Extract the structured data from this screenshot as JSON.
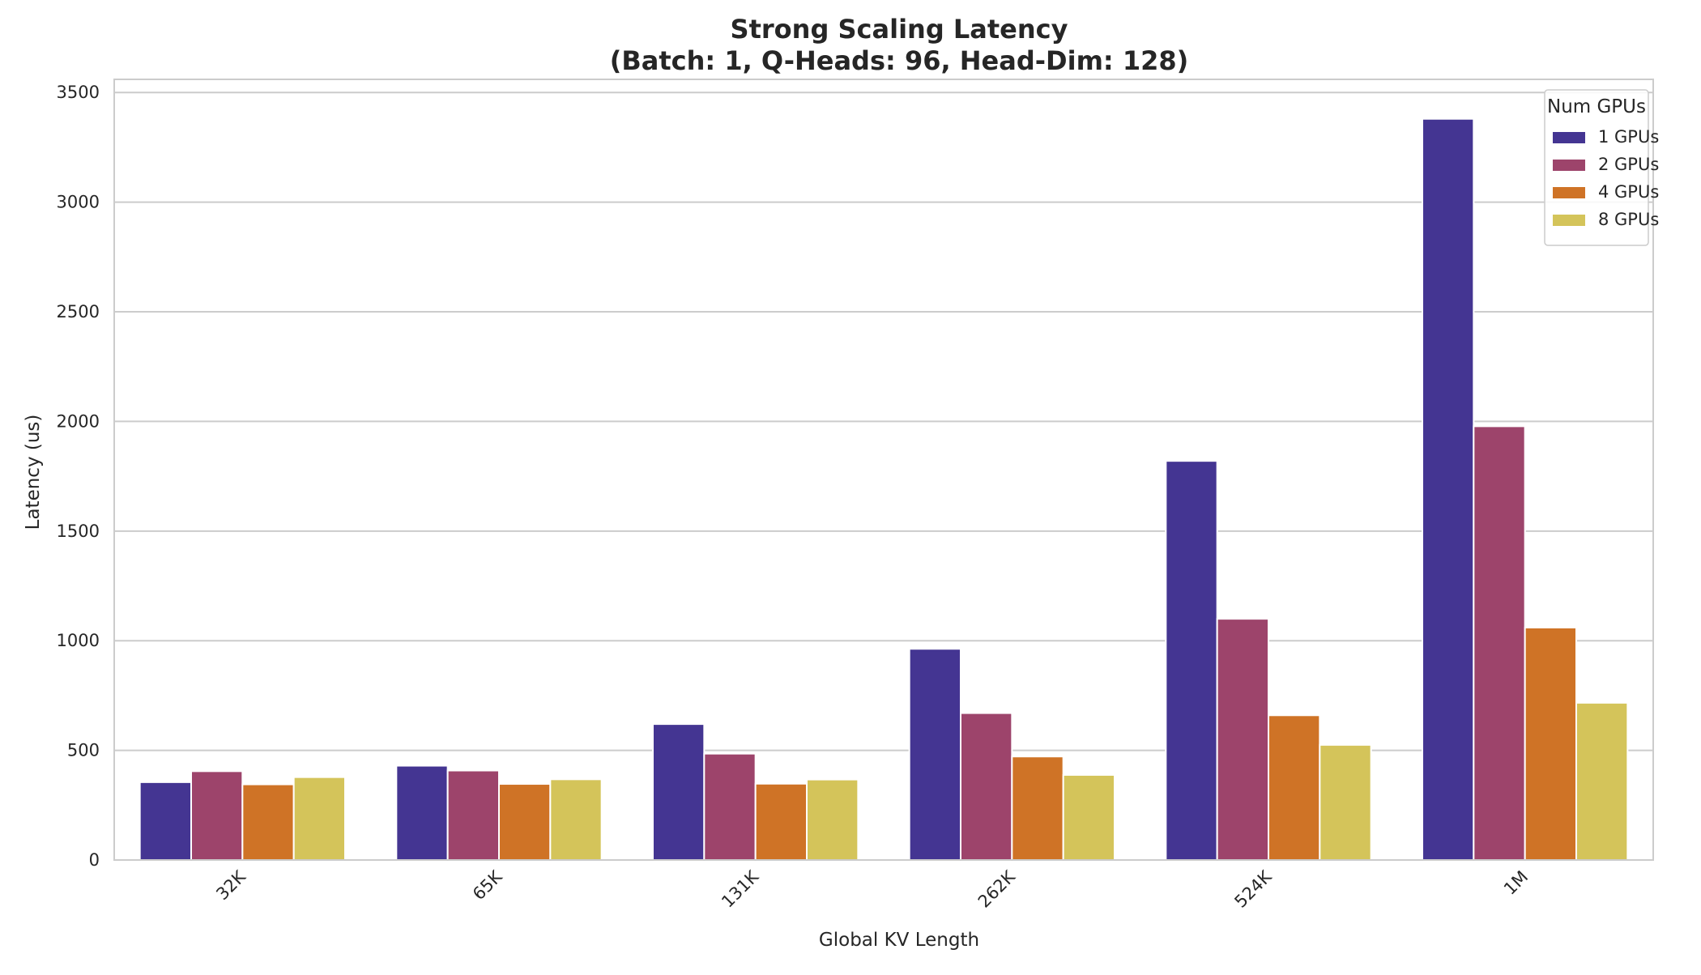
{
  "chart_data": {
    "type": "bar",
    "title": "Strong Scaling Latency",
    "subtitle": "(Batch: 1, Q-Heads: 96, Head-Dim: 128)",
    "xlabel": "Global KV Length",
    "ylabel": "Latency (us)",
    "categories": [
      "32K",
      "65K",
      "131K",
      "262K",
      "524K",
      "1M"
    ],
    "ylim": [
      0,
      3560
    ],
    "yticks": [
      0,
      500,
      1000,
      1500,
      2000,
      2500,
      3000,
      3500
    ],
    "ytick_labels": [
      "0",
      "500",
      "1000",
      "1500",
      "2000",
      "2500",
      "3000",
      "3500"
    ],
    "grid": "horizontal",
    "legend": {
      "title": "Num GPUs",
      "placement": "top-right"
    },
    "series": [
      {
        "name": "1 GPUs",
        "color": "#443592",
        "values": [
          355,
          430,
          620,
          963,
          1820,
          3380
        ]
      },
      {
        "name": "2 GPUs",
        "color": "#9d446b",
        "values": [
          405,
          408,
          485,
          670,
          1100,
          1978
        ]
      },
      {
        "name": "4 GPUs",
        "color": "#cf7326",
        "values": [
          345,
          347,
          348,
          472,
          660,
          1060
        ]
      },
      {
        "name": "8 GPUs",
        "color": "#d4c45a",
        "values": [
          378,
          368,
          367,
          388,
          525,
          717
        ]
      }
    ]
  }
}
